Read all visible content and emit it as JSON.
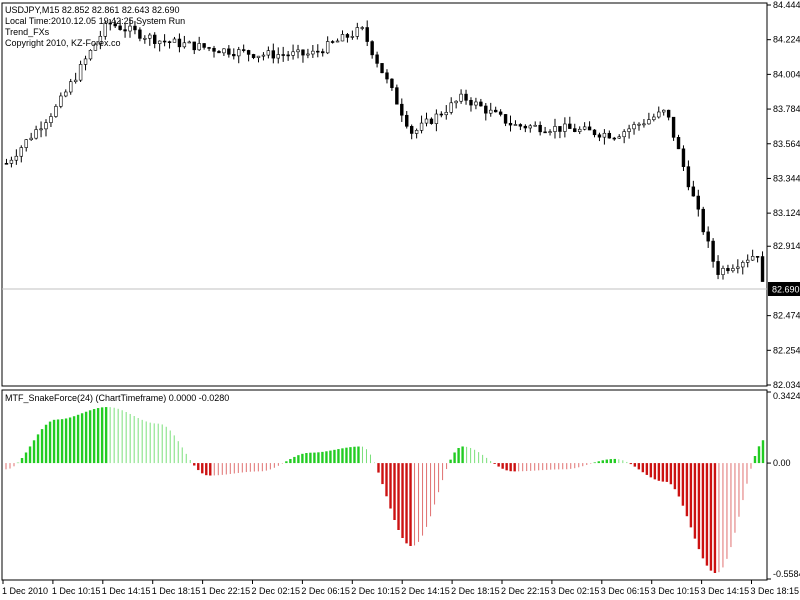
{
  "window": {
    "symbol_line": "USDJPY,M15  82.852 82.861 82.643 82.690",
    "time_line": "Local Time:2010.12.05 19:42:25 System Run",
    "indicator_name": "Trend_FXs",
    "copyright": "Copyright 2010, KZ-Forex.co"
  },
  "price_axis": {
    "ticks": [
      "84.444",
      "84.224",
      "84.004",
      "83.784",
      "83.564",
      "83.344",
      "83.124",
      "82.914",
      "82.474",
      "82.254",
      "82.034"
    ],
    "tick_values": [
      84.444,
      84.224,
      84.004,
      83.784,
      83.564,
      83.344,
      83.124,
      82.914,
      82.474,
      82.254,
      82.034
    ],
    "current_price": "82.690",
    "current_value": 82.69
  },
  "indicator": {
    "title": "MTF_SnakeForce(24) (ChartTimeframe) 0.0000 -0.0280",
    "ticks": [
      "0.3424",
      "0.00",
      "-0.5584"
    ],
    "tick_values": [
      0.3424,
      0.0,
      -0.5584
    ]
  },
  "time_axis": {
    "labels": [
      "1 Dec 2010",
      "1 Dec 10:15",
      "1 Dec 14:15",
      "1 Dec 18:15",
      "1 Dec 22:15",
      "2 Dec 02:15",
      "2 Dec 06:15",
      "2 Dec 10:15",
      "2 Dec 14:15",
      "2 Dec 18:15",
      "2 Dec 22:15",
      "3 Dec 02:15",
      "3 Dec 06:15",
      "3 Dec 10:15",
      "3 Dec 14:15",
      "3 Dec 18:15"
    ]
  },
  "colors": {
    "candle": "#000000",
    "current_line": "#c0c0c0",
    "positive": "#22cc22",
    "negative": "#cc1111"
  },
  "chart_data": [
    {
      "type": "line",
      "series": [
        {
          "x": [
            "1 Dec 2010",
            "1 Dec 10:15",
            "1 Dec 14:15",
            "1 Dec 18:15",
            "1 Dec 22:15",
            "2 Dec 02:15",
            "2 Dec 06:15",
            "2 Dec 10:15",
            "2 Dec 14:15",
            "2 Dec 18:15",
            "2 Dec 22:15",
            "3 Dec 02:15",
            "3 Dec 06:15",
            "3 Dec 10:15",
            "3 Dec 14:15",
            "3 Dec 18:15"
          ],
          "values": [
            83.44,
            83.8,
            84.33,
            84.22,
            84.17,
            84.13,
            84.13,
            84.29,
            83.63,
            83.86,
            83.68,
            83.66,
            83.62,
            83.77,
            82.75,
            82.9
          ]
        }
      ],
      "ylim": [
        82.034,
        84.444
      ]
    },
    {
      "type": "bar",
      "series": [
        {
          "x": [
            "1 Dec 2010",
            "1 Dec 10:15",
            "1 Dec 14:15",
            "1 Dec 18:15",
            "1 Dec 22:15",
            "2 Dec 02:15",
            "2 Dec 06:15",
            "2 Dec 10:15",
            "2 Dec 14:15",
            "2 Dec 18:15",
            "2 Dec 22:15",
            "3 Dec 02:15",
            "3 Dec 06:15",
            "3 Dec 10:15",
            "3 Dec 14:15",
            "3 Dec 18:15"
          ],
          "values": [
            -0.03,
            0.21,
            0.27,
            0.19,
            -0.06,
            -0.04,
            0.05,
            0.08,
            -0.4,
            0.08,
            -0.04,
            -0.03,
            0.02,
            -0.09,
            -0.53,
            0.12
          ]
        }
      ],
      "ylim": [
        -0.5584,
        0.3424
      ]
    }
  ]
}
